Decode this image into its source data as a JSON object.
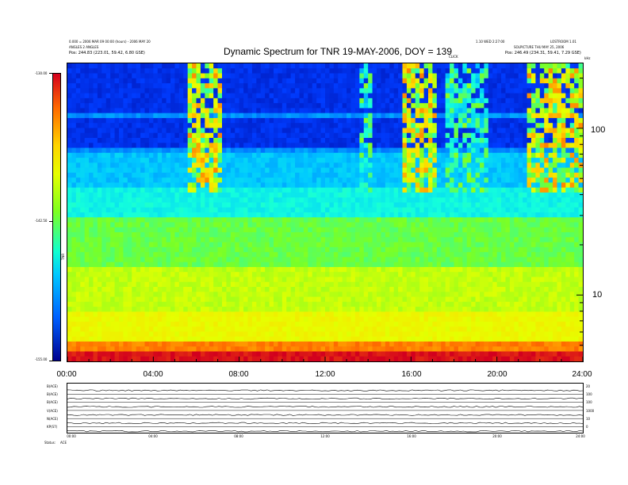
{
  "header": {
    "left_line1": "0.000 = 2006 MAR 09 00:00 (hours) - 2006 MAY 20",
    "left_line2": "ANGLES 2 ANGLES",
    "left_line3": "Pos:   244.83 (223.01, 59.42, 6.80 GSE)",
    "right_line1": "1.10 WED 2:27:00",
    "right_line2": "LOSTROOM 1.01",
    "right_line3": "SOLPICTURE  THU MAY 25, 2006",
    "right_line4": "Pos:   246.49 (234.31, 59.41, 7.29 GSE)",
    "mid_label": "CLICK",
    "unit_label": "kHz"
  },
  "colorbar": {
    "label": "TNR",
    "ticks": [
      "-130.00",
      "-142.50",
      "-155.00"
    ],
    "tick_values": [
      -130.0,
      -142.5,
      -155.0
    ],
    "colors": [
      "#d4001e",
      "#ff6a00",
      "#ffd400",
      "#7dff20",
      "#10ffd0",
      "#00c8ff",
      "#0060ff",
      "#000090"
    ]
  },
  "chart_data": {
    "type": "heatmap",
    "title": "Dynamic Spectrum for TNR 19-MAY-2006, DOY = 139",
    "xlabel": "",
    "ylabel": "kHz",
    "x_ticks": [
      "00:00",
      "04:00",
      "08:00",
      "12:00",
      "16:00",
      "20:00",
      "24:00"
    ],
    "x_range_hours": [
      0,
      24
    ],
    "y_scale": "log",
    "y_ticks": [
      "100",
      "10"
    ],
    "y_tick_values": [
      100,
      10
    ],
    "y_range_khz": [
      4,
      245
    ],
    "z_range": [
      -155.0,
      -130.0
    ],
    "z_label": "TNR",
    "bursts": [
      {
        "start_hour": 5.6,
        "end_hour": 7.1,
        "intensity": "high"
      },
      {
        "start_hour": 13.6,
        "end_hour": 14.2,
        "intensity": "medium"
      },
      {
        "start_hour": 15.7,
        "end_hour": 17.2,
        "intensity": "high"
      },
      {
        "start_hour": 17.6,
        "end_hour": 19.5,
        "intensity": "medium"
      },
      {
        "start_hour": 21.5,
        "end_hour": 24.0,
        "intensity": "high"
      }
    ]
  },
  "panels": {
    "rows": [
      {
        "label": "B(ACE)",
        "right_tick": "20"
      },
      {
        "label": "B(ACE)",
        "right_tick": "100"
      },
      {
        "label": "B(ACE)",
        "right_tick": "100"
      },
      {
        "label": "V(ACE)",
        "right_tick": "1000"
      },
      {
        "label": "N(ACE)",
        "right_tick": "10"
      },
      {
        "label": "KP(S7)",
        "right_tick": "0"
      }
    ],
    "x_ticks": [
      "00:00",
      "04:00",
      "08:00",
      "12:00",
      "16:00",
      "20:00",
      "24:00"
    ],
    "footer_left": "Status:",
    "footer_right": "ACE"
  }
}
